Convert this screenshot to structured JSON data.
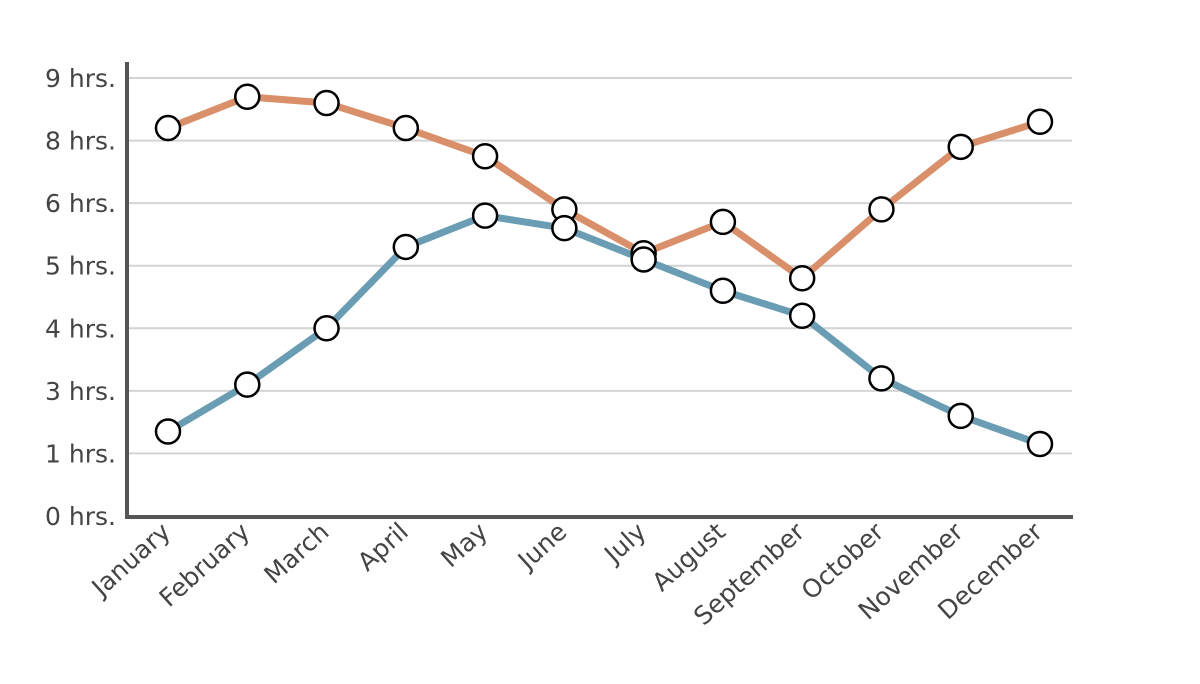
{
  "chart_data": {
    "type": "line",
    "title": "",
    "xlabel": "",
    "ylabel": "",
    "categories": [
      "January",
      "February",
      "March",
      "April",
      "May",
      "June",
      "July",
      "August",
      "September",
      "October",
      "November",
      "December"
    ],
    "y_ticks": [
      {
        "label": "0 hrs.",
        "value": 0
      },
      {
        "label": "1 hrs.",
        "value": 1
      },
      {
        "label": "3 hrs.",
        "value": 3
      },
      {
        "label": "4 hrs.",
        "value": 4
      },
      {
        "label": "5 hrs.",
        "value": 5
      },
      {
        "label": "6 hrs.",
        "value": 6
      },
      {
        "label": "8 hrs.",
        "value": 8
      },
      {
        "label": "9 hrs.",
        "value": 9
      }
    ],
    "ylim": [
      0,
      9
    ],
    "grid": true,
    "legend": "none",
    "series": [
      {
        "color": "#d9906a",
        "values": [
          8.2,
          8.7,
          8.6,
          8.2,
          7.5,
          5.9,
          5.2,
          5.7,
          4.8,
          5.9,
          7.8,
          8.3
        ]
      },
      {
        "color": "#6a9db4",
        "values": [
          1.7,
          3.1,
          4.0,
          5.3,
          5.8,
          5.6,
          5.1,
          4.6,
          4.2,
          3.2,
          2.2,
          1.3
        ]
      }
    ],
    "marker": {
      "fill": "#ffffff",
      "stroke": "#000000"
    }
  }
}
